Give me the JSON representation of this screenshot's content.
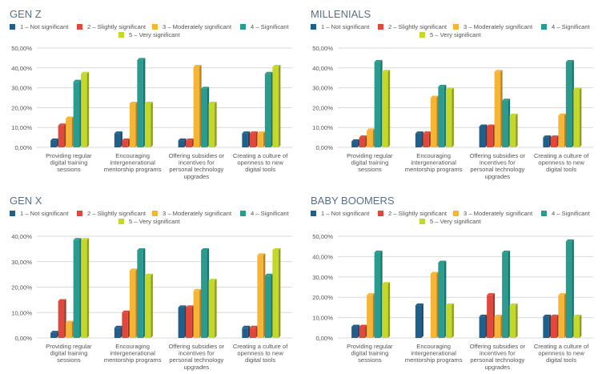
{
  "colors": {
    "s1": "#1f5f8b",
    "s2": "#e0483c",
    "s3": "#f7b538",
    "s4": "#2a9b8f",
    "s5": "#c4d82a",
    "grid": "#d9d9d9",
    "title": "#5a6f85",
    "text": "#555555"
  },
  "legend": [
    "1 – Not significant",
    "2 – Slightly significant",
    "3 – Moderately significant",
    "4 – Significant",
    "5 – Very significant"
  ],
  "categories": [
    [
      "Providing regular",
      "digital training",
      "sessions"
    ],
    [
      "Encouraging",
      "intergenerational",
      "mentorship programs"
    ],
    [
      "Offering subsidies or",
      "incentives for",
      "personal technology",
      "upgrades"
    ],
    [
      "Creating a culture of",
      "openness to new",
      "digital tools"
    ]
  ],
  "chart_data": [
    {
      "type": "bar",
      "title": "GEN Z",
      "ylim": [
        0,
        50
      ],
      "yticks": [
        "0,00%",
        "10,00%",
        "20,00%",
        "30,00%",
        "40,00%",
        "50,00%"
      ],
      "series": [
        {
          "name": "1 – Not significant",
          "values": [
            3.5,
            7,
            3.5,
            7
          ]
        },
        {
          "name": "2 – Slightly significant",
          "values": [
            11,
            3.5,
            3.5,
            7
          ]
        },
        {
          "name": "3 – Moderately significant",
          "values": [
            14.5,
            22,
            40.5,
            7
          ]
        },
        {
          "name": "4 – Significant",
          "values": [
            33,
            44,
            29.5,
            37
          ]
        },
        {
          "name": "5 – Very significant",
          "values": [
            37,
            22,
            22,
            40.5
          ]
        }
      ]
    },
    {
      "type": "bar",
      "title": "MILLENIALS",
      "ylim": [
        0,
        50
      ],
      "yticks": [
        "0,00%",
        "10,00%",
        "20,00%",
        "30,00%",
        "40,00%",
        "50,00%"
      ],
      "series": [
        {
          "name": "1 – Not significant",
          "values": [
            3,
            7,
            10.5,
            5
          ]
        },
        {
          "name": "2 – Slightly significant",
          "values": [
            5,
            7,
            10.5,
            5
          ]
        },
        {
          "name": "3 – Moderately significant",
          "values": [
            8.5,
            25,
            38,
            16
          ]
        },
        {
          "name": "4 – Significant",
          "values": [
            43,
            30.5,
            23.5,
            43
          ]
        },
        {
          "name": "5 – Very significant",
          "values": [
            38,
            29,
            16,
            29
          ]
        }
      ]
    },
    {
      "type": "bar",
      "title": "GEN X",
      "ylim": [
        0,
        40
      ],
      "yticks": [
        "0,00%",
        "10,00%",
        "20,00%",
        "30,00%",
        "40,00%"
      ],
      "series": [
        {
          "name": "1 – Not significant",
          "values": [
            2,
            4,
            12,
            4
          ]
        },
        {
          "name": "2 – Slightly significant",
          "values": [
            14.5,
            10,
            12,
            4
          ]
        },
        {
          "name": "3 – Moderately significant",
          "values": [
            6,
            26.5,
            18.5,
            32.5
          ]
        },
        {
          "name": "4 – Significant",
          "values": [
            38.5,
            34.5,
            34.5,
            24.5
          ]
        },
        {
          "name": "5 – Very significant",
          "values": [
            38.5,
            24.5,
            22.5,
            34.5
          ]
        }
      ]
    },
    {
      "type": "bar",
      "title": "BABY BOOMERS",
      "ylim": [
        0,
        50
      ],
      "yticks": [
        "0,00%",
        "10,00%",
        "20,00%",
        "30,00%",
        "40,00%",
        "50,00%"
      ],
      "series": [
        {
          "name": "1 – Not significant",
          "values": [
            5.5,
            16,
            10.5,
            10.5
          ]
        },
        {
          "name": "2 – Slightly significant",
          "values": [
            5.5,
            0,
            21,
            10.5
          ]
        },
        {
          "name": "3 – Moderately significant",
          "values": [
            21,
            31.5,
            10.5,
            21
          ]
        },
        {
          "name": "4 – Significant",
          "values": [
            42,
            37,
            42,
            47.5
          ]
        },
        {
          "name": "5 – Very significant",
          "values": [
            26.5,
            16,
            16,
            10.5
          ]
        }
      ]
    }
  ]
}
